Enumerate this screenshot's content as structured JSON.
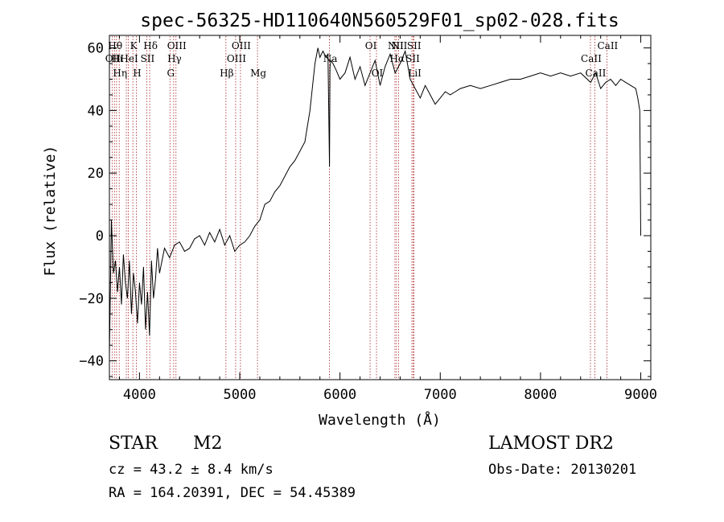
{
  "chart_data": {
    "type": "line",
    "title": "spec-56325-HD110640N560529F01_sp02-028.fits",
    "xlabel": "Wavelength (Å)",
    "ylabel": "Flux (relative)",
    "xlim": [
      3700,
      9100
    ],
    "ylim": [
      -46,
      64
    ],
    "xticks": [
      4000,
      5000,
      6000,
      7000,
      8000,
      9000
    ],
    "yticks": [
      -40,
      -20,
      0,
      20,
      40,
      60
    ],
    "grid": false,
    "legend": "none",
    "series": [
      {
        "color": "#000000",
        "x": [
          3700,
          3720,
          3740,
          3760,
          3780,
          3800,
          3820,
          3840,
          3860,
          3880,
          3900,
          3920,
          3940,
          3960,
          3980,
          4000,
          4020,
          4040,
          4060,
          4080,
          4100,
          4120,
          4140,
          4160,
          4180,
          4200,
          4250,
          4300,
          4350,
          4400,
          4450,
          4500,
          4550,
          4600,
          4650,
          4700,
          4750,
          4800,
          4850,
          4900,
          4950,
          5000,
          5050,
          5100,
          5150,
          5200,
          5250,
          5300,
          5350,
          5400,
          5450,
          5500,
          5550,
          5600,
          5650,
          5700,
          5750,
          5780,
          5800,
          5830,
          5860,
          5880,
          5890,
          5895,
          5900,
          5910,
          5930,
          5960,
          6000,
          6050,
          6100,
          6150,
          6200,
          6250,
          6300,
          6350,
          6400,
          6450,
          6500,
          6550,
          6600,
          6650,
          6700,
          6750,
          6800,
          6850,
          6900,
          6950,
          7000,
          7050,
          7100,
          7150,
          7200,
          7300,
          7400,
          7500,
          7600,
          7700,
          7800,
          7900,
          8000,
          8100,
          8200,
          8300,
          8400,
          8500,
          8550,
          8600,
          8650,
          8700,
          8750,
          8800,
          8850,
          8900,
          8950,
          8970,
          8990,
          9000
        ],
        "y": [
          -38,
          5,
          -12,
          -8,
          -18,
          -10,
          -22,
          -6,
          -15,
          -20,
          -8,
          -25,
          -12,
          -18,
          -28,
          -15,
          -22,
          -10,
          -30,
          -18,
          -32,
          -8,
          -20,
          -14,
          -4,
          -12,
          -4,
          -7,
          -3,
          -2,
          -5,
          -4,
          -1,
          0,
          -3,
          1,
          -2,
          2,
          -3,
          0,
          -5,
          -3,
          -2,
          0,
          3,
          5,
          10,
          11,
          14,
          16,
          19,
          22,
          24,
          27,
          30,
          40,
          55,
          60,
          57,
          59,
          57,
          58,
          35,
          22,
          54,
          56,
          55,
          53,
          50,
          52,
          57,
          50,
          54,
          48,
          52,
          56,
          48,
          54,
          58,
          52,
          55,
          59,
          50,
          47,
          44,
          48,
          45,
          42,
          44,
          46,
          45,
          46,
          47,
          48,
          47,
          48,
          49,
          50,
          50,
          51,
          52,
          51,
          52,
          51,
          52,
          49,
          52,
          47,
          49,
          50,
          48,
          50,
          49,
          48,
          47,
          44,
          40,
          0
        ]
      }
    ],
    "line_markers": [
      {
        "x": 3727,
        "label": "OII",
        "row": 2
      },
      {
        "x": 3750,
        "label": "Hθ",
        "row": 1
      },
      {
        "x": 3771,
        "label": "Hι",
        "row": 2
      },
      {
        "x": 3798,
        "label": "Hη",
        "row": 3
      },
      {
        "x": 3869,
        "label": "",
        "row": 0
      },
      {
        "x": 3889,
        "label": "HeI",
        "row": 2
      },
      {
        "x": 3934,
        "label": "K",
        "row": 1
      },
      {
        "x": 3969,
        "label": "H",
        "row": 3
      },
      {
        "x": 4072,
        "label": "SII",
        "row": 2
      },
      {
        "x": 4102,
        "label": "Hδ",
        "row": 1
      },
      {
        "x": 4304,
        "label": "G",
        "row": 3
      },
      {
        "x": 4341,
        "label": "Hγ",
        "row": 2
      },
      {
        "x": 4364,
        "label": "OIII",
        "row": 1
      },
      {
        "x": 4862,
        "label": "Hβ",
        "row": 3
      },
      {
        "x": 4959,
        "label": "OIII",
        "row": 2
      },
      {
        "x": 5007,
        "label": "OIII",
        "row": 1
      },
      {
        "x": 5177,
        "label": "Mg",
        "row": 3
      },
      {
        "x": 5895,
        "label": "Na",
        "row": 2
      },
      {
        "x": 6300,
        "label": "OI",
        "row": 1
      },
      {
        "x": 6364,
        "label": "OI",
        "row": 3
      },
      {
        "x": 6548,
        "label": "NII",
        "row": 1
      },
      {
        "x": 6563,
        "label": "Hα",
        "row": 2
      },
      {
        "x": 6584,
        "label": "NII",
        "row": 1
      },
      {
        "x": 6717,
        "label": "SII",
        "row": 2
      },
      {
        "x": 6731,
        "label": "SII",
        "row": 1
      },
      {
        "x": 6738,
        "label": "LiI",
        "row": 3
      },
      {
        "x": 8498,
        "label": "CaII",
        "row": 2
      },
      {
        "x": 8542,
        "label": "CaII",
        "row": 3
      },
      {
        "x": 8662,
        "label": "CaII",
        "row": 1
      }
    ]
  },
  "info": {
    "object_class": "STAR",
    "subclass": "M2",
    "redshift_line": "cz = 43.2 ± 8.4 km/s",
    "coords_line": "RA = 164.20391, DEC =  54.45389",
    "survey": "LAMOST DR2",
    "obs_date": "Obs-Date: 20130201"
  }
}
